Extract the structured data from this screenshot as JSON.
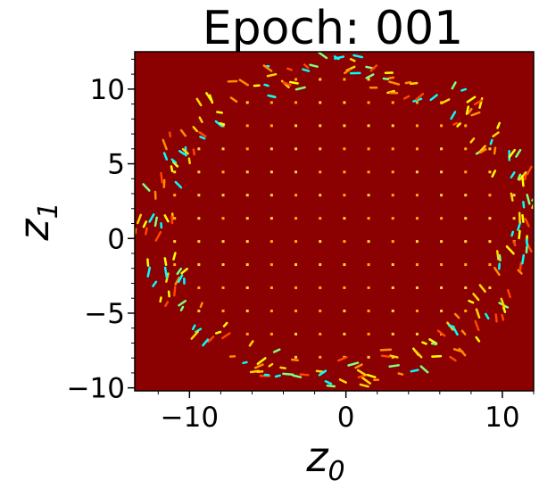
{
  "chart_data": {
    "type": "heatmap",
    "title": "Epoch: 001",
    "xlabel": "z",
    "xlabel_sub": "0",
    "ylabel": "z",
    "ylabel_sub": "1",
    "xlim": [
      -13.5,
      12.0
    ],
    "ylim": [
      -10.2,
      12.5
    ],
    "xticks": [
      -10,
      0,
      10
    ],
    "xtick_labels": [
      "−10",
      "0",
      "10"
    ],
    "yticks": [
      -10,
      -5,
      0,
      5,
      10
    ],
    "ytick_labels": [
      "−10",
      "−5",
      "0",
      "5",
      "10"
    ],
    "colormap": "jet",
    "background_color": "#8b0000",
    "grid": false,
    "legend": "none",
    "description_values": {
      "region_center": [
        -0.5,
        1.2
      ],
      "region_radius_x": 12.8,
      "region_radius_y": 11.0
    }
  }
}
